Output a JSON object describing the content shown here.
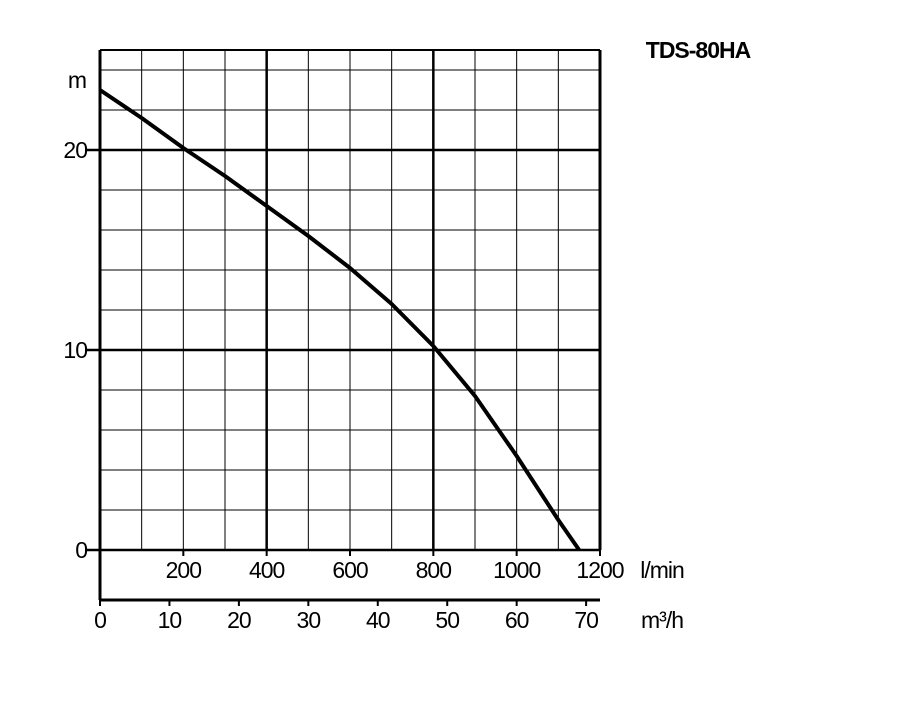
{
  "chart_data": {
    "type": "line",
    "title": "TDS-80HA",
    "y_label": "m",
    "x_label": "l/min",
    "x2_label": "m³/h",
    "x": [
      0,
      100,
      200,
      300,
      400,
      500,
      600,
      700,
      800,
      900,
      1000,
      1100,
      1150
    ],
    "series": [
      {
        "name": "TDS-80HA",
        "color": "#000000",
        "values": [
          23,
          21.6,
          20.1,
          18.7,
          17.2,
          15.7,
          14.1,
          12.3,
          10.2,
          7.7,
          4.7,
          1.5,
          0
        ]
      }
    ],
    "xlim": [
      0,
      1200
    ],
    "xticks": [
      200,
      400,
      600,
      800,
      1000,
      1200
    ],
    "ylim": [
      0,
      25
    ],
    "yticks": [
      0,
      10,
      20
    ],
    "x2lim": [
      0,
      72
    ],
    "x2ticks": [
      0,
      10,
      20,
      30,
      40,
      50,
      60,
      70
    ],
    "x_minor_grid": [
      100,
      200,
      300,
      400,
      500,
      600,
      700,
      800,
      900,
      1000,
      1100
    ],
    "x_major_grid": [
      400,
      800
    ],
    "y_minor_grid": [
      2,
      4,
      6,
      8,
      12,
      14,
      16,
      18,
      22,
      24
    ],
    "grid": true
  }
}
